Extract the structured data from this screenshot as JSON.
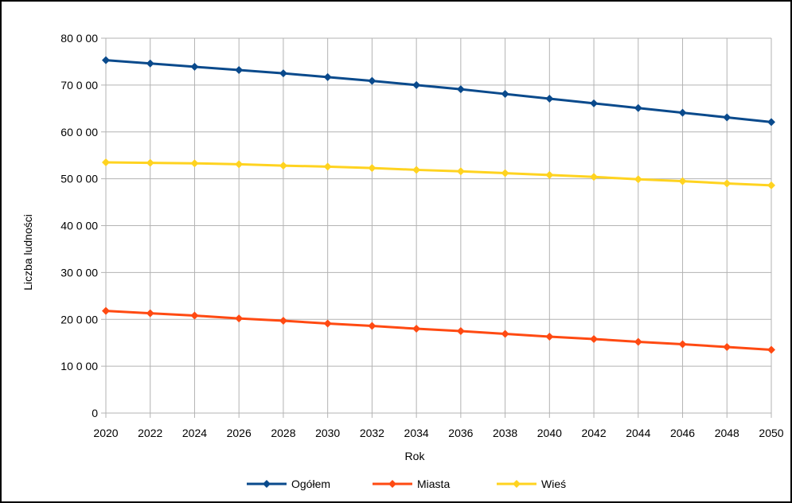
{
  "chart_data": {
    "type": "line",
    "xlabel": "Rok",
    "ylabel": "Liczba ludności",
    "x": [
      2020,
      2022,
      2024,
      2026,
      2028,
      2030,
      2032,
      2034,
      2036,
      2038,
      2040,
      2042,
      2044,
      2046,
      2048,
      2050
    ],
    "x_tick_labels": [
      "2020",
      "2022",
      "2024",
      "2026",
      "2028",
      "2030",
      "2032",
      "2034",
      "2036",
      "2038",
      "2040",
      "2042",
      "2044",
      "2046",
      "2048",
      "2050"
    ],
    "ylim": [
      0,
      80000
    ],
    "y_ticks": [
      0,
      10000,
      20000,
      30000,
      40000,
      50000,
      60000,
      70000,
      80000
    ],
    "y_tick_labels": [
      "0",
      "10 0 00",
      "20 0 00",
      "30 0 00",
      "40 0 00",
      "50 0 00",
      "60 0 00",
      "70 0 00",
      "80 0 00"
    ],
    "grid": true,
    "legend_position": "bottom",
    "series": [
      {
        "name": "Ogółem",
        "color": "#0a4a8c",
        "values": [
          75300,
          74600,
          73900,
          73200,
          72500,
          71700,
          70900,
          70000,
          69100,
          68100,
          67100,
          66100,
          65100,
          64100,
          63100,
          62100
        ]
      },
      {
        "name": "Miasta",
        "color": "#ff4a12",
        "values": [
          21800,
          21300,
          20800,
          20200,
          19700,
          19100,
          18600,
          18000,
          17500,
          16900,
          16300,
          15800,
          15200,
          14700,
          14100,
          13500
        ]
      },
      {
        "name": "Wieś",
        "color": "#ffd320",
        "values": [
          53500,
          53400,
          53300,
          53100,
          52800,
          52600,
          52300,
          51900,
          51600,
          51200,
          50800,
          50400,
          49900,
          49500,
          49000,
          48600
        ]
      }
    ]
  }
}
